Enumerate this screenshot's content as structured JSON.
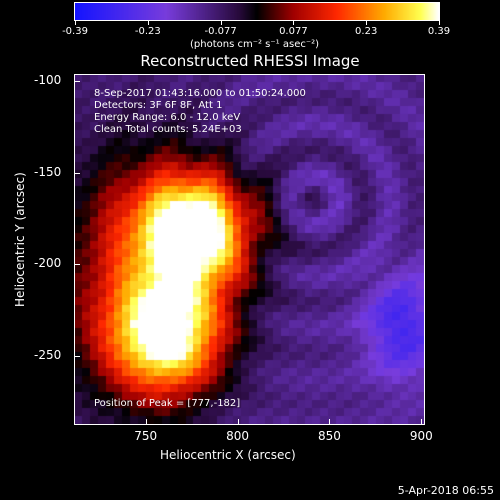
{
  "colorbar": {
    "ticks": [
      "-0.39",
      "-0.23",
      "-0.077",
      "0.077",
      "0.23",
      "0.39"
    ],
    "units": "(photons cm⁻² s⁻¹ asec⁻²)"
  },
  "title": "Reconstructed RHESSI Image",
  "info_lines": [
    "8-Sep-2017 01:43:16.000 to 01:50:24.000",
    "Detectors: 3F 6F 8F, Att 1",
    "Energy Range: 6.0 - 12.0 keV",
    "Clean    Total counts: 5.24E+03"
  ],
  "peak_text": "Position of Peak = [777,-182]",
  "y_ticks": [
    "-100",
    "-150",
    "-200",
    "-250"
  ],
  "x_ticks": [
    "750",
    "800",
    "850",
    "900"
  ],
  "y_axis_title": "Heliocentric Y (arcsec)",
  "x_axis_title": "Heliocentric X (arcsec)",
  "footer_date": "5-Apr-2018 06:55",
  "colors": {
    "background": "#000000",
    "text": "#ffffff"
  },
  "chart_data": {
    "type": "heatmap",
    "title": "Reconstructed RHESSI Image",
    "xlabel": "Heliocentric X (arcsec)",
    "ylabel": "Heliocentric Y (arcsec)",
    "xlim": [
      711,
      902
    ],
    "ylim": [
      -288,
      -96
    ],
    "colorbar_range": [
      -0.39,
      0.39
    ],
    "sources": [
      {
        "x": 777,
        "y": -182,
        "peak": 0.39
      },
      {
        "x": 762,
        "y": -240,
        "peak": 0.33
      }
    ]
  }
}
